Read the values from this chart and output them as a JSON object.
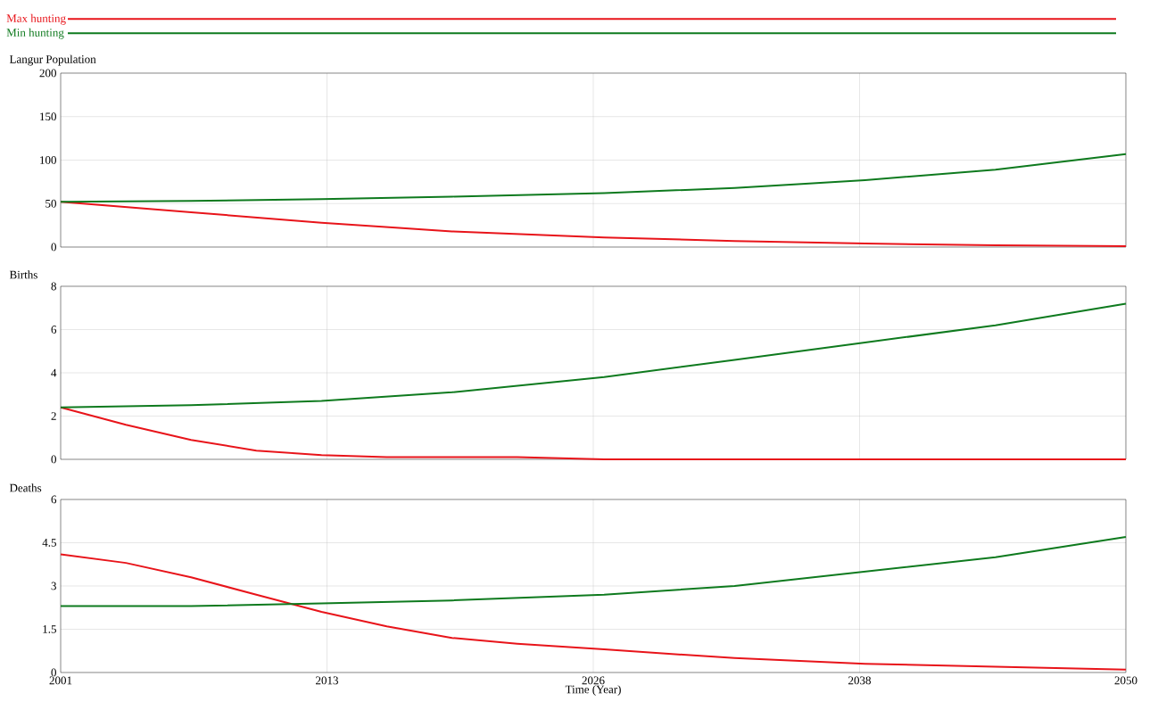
{
  "chart_data": [
    {
      "type": "line",
      "title": "Langur Population",
      "legend": "top",
      "grid": true,
      "tick_labels": "y",
      "xlim": [
        2001,
        2050
      ],
      "xticks": [
        {
          "value": 2001,
          "label": null
        },
        {
          "value": 2013.25,
          "label": null
        },
        {
          "value": 2025.5,
          "label": null
        },
        {
          "value": 2037.75,
          "label": null
        },
        {
          "value": 2050,
          "label": null
        }
      ],
      "ylim": [
        0,
        200
      ],
      "yticks": [
        0,
        50,
        100,
        150,
        200
      ],
      "series": [
        {
          "name": "Max hunting",
          "color": "#e8141a",
          "x": [
            2001,
            2007,
            2013,
            2019,
            2026,
            2032,
            2038,
            2044,
            2050
          ],
          "values": [
            52,
            40,
            28,
            18,
            11,
            7,
            4,
            2,
            1
          ]
        },
        {
          "name": "Min hunting",
          "color": "#0e7a1e",
          "x": [
            2001,
            2007,
            2013,
            2019,
            2026,
            2032,
            2038,
            2044,
            2050
          ],
          "values": [
            52,
            53,
            55,
            58,
            62,
            68,
            77,
            89,
            107
          ]
        }
      ]
    },
    {
      "type": "line",
      "title": "Births",
      "grid": true,
      "tick_labels": "y",
      "xlim": [
        2001,
        2050
      ],
      "xticks": [
        {
          "value": 2001,
          "label": null
        },
        {
          "value": 2013.25,
          "label": null
        },
        {
          "value": 2025.5,
          "label": null
        },
        {
          "value": 2037.75,
          "label": null
        },
        {
          "value": 2050,
          "label": null
        }
      ],
      "ylim": [
        0,
        8
      ],
      "yticks": [
        0,
        2,
        4,
        6,
        8
      ],
      "series": [
        {
          "color": "#e8141a",
          "x": [
            2001,
            2004,
            2007,
            2010,
            2013,
            2016,
            2019,
            2022,
            2026,
            2050
          ],
          "values": [
            2.4,
            1.6,
            0.9,
            0.4,
            0.2,
            0.1,
            0.1,
            0.1,
            0,
            0
          ]
        },
        {
          "color": "#0e7a1e",
          "x": [
            2001,
            2007,
            2013,
            2019,
            2026,
            2032,
            2038,
            2044,
            2050
          ],
          "values": [
            2.4,
            2.5,
            2.7,
            3.1,
            3.8,
            4.6,
            5.4,
            6.2,
            7.2
          ]
        }
      ]
    },
    {
      "type": "line",
      "title": "Deaths",
      "xlabel": "Time (Year)",
      "grid": true,
      "xlim": [
        2001,
        2050
      ],
      "xticks": [
        2001,
        {
          "value": 2013.25,
          "label": "2013"
        },
        {
          "value": 2025.5,
          "label": "2026"
        },
        {
          "value": 2037.75,
          "label": "2038"
        },
        2050
      ],
      "ylim": [
        0,
        6
      ],
      "yticks": [
        0,
        1.5,
        3,
        4.5,
        6
      ],
      "series": [
        {
          "color": "#e8141a",
          "x": [
            2001,
            2004,
            2007,
            2010,
            2013,
            2016,
            2019,
            2022,
            2026,
            2032,
            2038,
            2044,
            2050
          ],
          "values": [
            4.1,
            3.8,
            3.3,
            2.7,
            2.1,
            1.6,
            1.2,
            1,
            0.8,
            0.5,
            0.3,
            0.2,
            0.1
          ]
        },
        {
          "color": "#0e7a1e",
          "x": [
            2001,
            2007,
            2013,
            2019,
            2026,
            2032,
            2038,
            2044,
            2050
          ],
          "values": [
            2.3,
            2.3,
            2.4,
            2.5,
            2.7,
            3,
            3.5,
            4,
            4.7
          ]
        }
      ]
    }
  ]
}
